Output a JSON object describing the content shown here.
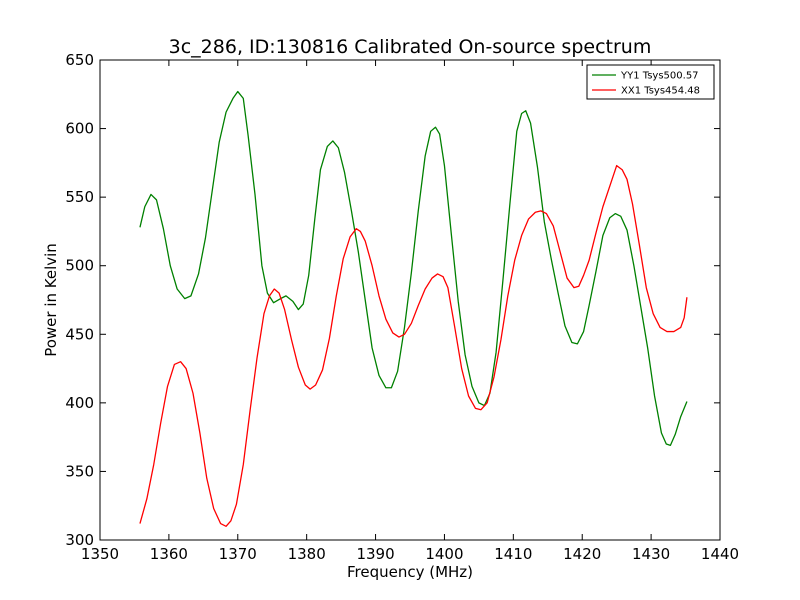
{
  "chart_data": {
    "type": "line",
    "title": "3c_286, ID:130816 Calibrated On-source spectrum",
    "xlabel": "Frequency (MHz)",
    "ylabel": "Power in Kelvin",
    "xlim": [
      1350,
      1440
    ],
    "ylim": [
      300,
      650
    ],
    "xticks": [
      1350,
      1360,
      1370,
      1380,
      1390,
      1400,
      1410,
      1420,
      1430,
      1440
    ],
    "yticks": [
      300,
      350,
      400,
      450,
      500,
      550,
      600,
      650
    ],
    "grid": false,
    "legend_position": "top-right",
    "series": [
      {
        "name": "YY1 Tsys500.57",
        "color": "#008000",
        "points": [
          [
            1355.8,
            528
          ],
          [
            1356.5,
            543
          ],
          [
            1357.4,
            552
          ],
          [
            1358.2,
            548
          ],
          [
            1359.2,
            527
          ],
          [
            1360.2,
            500
          ],
          [
            1361.2,
            483
          ],
          [
            1362.3,
            476
          ],
          [
            1363.2,
            478
          ],
          [
            1364.3,
            494
          ],
          [
            1365.3,
            520
          ],
          [
            1366.3,
            555
          ],
          [
            1367.3,
            590
          ],
          [
            1368.3,
            612
          ],
          [
            1369.3,
            622
          ],
          [
            1370.0,
            627
          ],
          [
            1370.8,
            622
          ],
          [
            1371.5,
            595
          ],
          [
            1372.5,
            552
          ],
          [
            1373.5,
            500
          ],
          [
            1374.3,
            480
          ],
          [
            1375.2,
            473
          ],
          [
            1376.2,
            476
          ],
          [
            1377.0,
            478
          ],
          [
            1378.0,
            474
          ],
          [
            1378.8,
            468
          ],
          [
            1379.5,
            472
          ],
          [
            1380.3,
            493
          ],
          [
            1381.2,
            535
          ],
          [
            1382.0,
            570
          ],
          [
            1383.0,
            587
          ],
          [
            1383.8,
            591
          ],
          [
            1384.6,
            586
          ],
          [
            1385.5,
            568
          ],
          [
            1386.5,
            540
          ],
          [
            1387.5,
            510
          ],
          [
            1388.5,
            475
          ],
          [
            1389.5,
            440
          ],
          [
            1390.5,
            420
          ],
          [
            1391.5,
            411
          ],
          [
            1392.3,
            411
          ],
          [
            1393.2,
            423
          ],
          [
            1394.2,
            455
          ],
          [
            1395.2,
            495
          ],
          [
            1396.2,
            540
          ],
          [
            1397.2,
            580
          ],
          [
            1398.0,
            598
          ],
          [
            1398.7,
            601
          ],
          [
            1399.3,
            596
          ],
          [
            1400.0,
            573
          ],
          [
            1401.0,
            523
          ],
          [
            1402.0,
            474
          ],
          [
            1403.0,
            435
          ],
          [
            1404.0,
            412
          ],
          [
            1405.0,
            400
          ],
          [
            1405.8,
            398
          ],
          [
            1406.6,
            407
          ],
          [
            1407.5,
            437
          ],
          [
            1408.5,
            490
          ],
          [
            1409.5,
            545
          ],
          [
            1410.5,
            598
          ],
          [
            1411.2,
            611
          ],
          [
            1411.8,
            613
          ],
          [
            1412.5,
            604
          ],
          [
            1413.5,
            572
          ],
          [
            1414.5,
            532
          ],
          [
            1415.5,
            505
          ],
          [
            1416.5,
            480
          ],
          [
            1417.5,
            456
          ],
          [
            1418.5,
            444
          ],
          [
            1419.3,
            443
          ],
          [
            1420.2,
            452
          ],
          [
            1421.0,
            471
          ],
          [
            1422.0,
            496
          ],
          [
            1423.0,
            522
          ],
          [
            1424.0,
            535
          ],
          [
            1424.8,
            538
          ],
          [
            1425.6,
            536
          ],
          [
            1426.5,
            526
          ],
          [
            1427.5,
            500
          ],
          [
            1428.5,
            470
          ],
          [
            1429.5,
            440
          ],
          [
            1430.5,
            405
          ],
          [
            1431.5,
            378
          ],
          [
            1432.2,
            370
          ],
          [
            1432.8,
            369
          ],
          [
            1433.5,
            377
          ],
          [
            1434.3,
            390
          ],
          [
            1435.2,
            401
          ]
        ]
      },
      {
        "name": "XX1 Tsys454.48",
        "color": "#ff0000",
        "points": [
          [
            1355.8,
            312
          ],
          [
            1356.8,
            330
          ],
          [
            1357.8,
            355
          ],
          [
            1358.8,
            385
          ],
          [
            1359.8,
            412
          ],
          [
            1360.8,
            428
          ],
          [
            1361.7,
            430
          ],
          [
            1362.5,
            425
          ],
          [
            1363.5,
            407
          ],
          [
            1364.5,
            378
          ],
          [
            1365.5,
            345
          ],
          [
            1366.5,
            323
          ],
          [
            1367.5,
            312
          ],
          [
            1368.3,
            310
          ],
          [
            1369.0,
            314
          ],
          [
            1369.8,
            326
          ],
          [
            1370.8,
            355
          ],
          [
            1371.8,
            395
          ],
          [
            1372.8,
            433
          ],
          [
            1373.8,
            465
          ],
          [
            1374.6,
            478
          ],
          [
            1375.3,
            483
          ],
          [
            1376.0,
            480
          ],
          [
            1376.8,
            468
          ],
          [
            1377.8,
            446
          ],
          [
            1378.8,
            426
          ],
          [
            1379.8,
            413
          ],
          [
            1380.5,
            410
          ],
          [
            1381.3,
            413
          ],
          [
            1382.3,
            424
          ],
          [
            1383.3,
            447
          ],
          [
            1384.3,
            478
          ],
          [
            1385.3,
            505
          ],
          [
            1386.3,
            521
          ],
          [
            1387.2,
            527
          ],
          [
            1387.8,
            525
          ],
          [
            1388.5,
            518
          ],
          [
            1389.5,
            500
          ],
          [
            1390.5,
            478
          ],
          [
            1391.5,
            461
          ],
          [
            1392.5,
            451
          ],
          [
            1393.4,
            448
          ],
          [
            1394.2,
            450
          ],
          [
            1395.2,
            458
          ],
          [
            1396.2,
            471
          ],
          [
            1397.2,
            483
          ],
          [
            1398.2,
            491
          ],
          [
            1399.0,
            494
          ],
          [
            1399.8,
            492
          ],
          [
            1400.5,
            484
          ],
          [
            1401.5,
            455
          ],
          [
            1402.5,
            425
          ],
          [
            1403.5,
            405
          ],
          [
            1404.5,
            396
          ],
          [
            1405.3,
            395
          ],
          [
            1406.2,
            400
          ],
          [
            1407.2,
            419
          ],
          [
            1408.2,
            446
          ],
          [
            1409.2,
            478
          ],
          [
            1410.2,
            504
          ],
          [
            1411.2,
            522
          ],
          [
            1412.2,
            534
          ],
          [
            1413.2,
            539
          ],
          [
            1414.0,
            540
          ],
          [
            1414.8,
            538
          ],
          [
            1415.8,
            529
          ],
          [
            1416.8,
            510
          ],
          [
            1417.8,
            491
          ],
          [
            1418.8,
            484
          ],
          [
            1419.5,
            485
          ],
          [
            1420.2,
            493
          ],
          [
            1421.0,
            504
          ],
          [
            1422.0,
            524
          ],
          [
            1423.0,
            543
          ],
          [
            1424.2,
            561
          ],
          [
            1425.0,
            573
          ],
          [
            1425.8,
            570
          ],
          [
            1426.5,
            563
          ],
          [
            1427.3,
            545
          ],
          [
            1428.3,
            515
          ],
          [
            1429.3,
            484
          ],
          [
            1430.3,
            465
          ],
          [
            1431.3,
            455
          ],
          [
            1432.3,
            452
          ],
          [
            1433.3,
            452
          ],
          [
            1434.3,
            455
          ],
          [
            1434.8,
            462
          ],
          [
            1435.2,
            477
          ]
        ]
      }
    ]
  }
}
